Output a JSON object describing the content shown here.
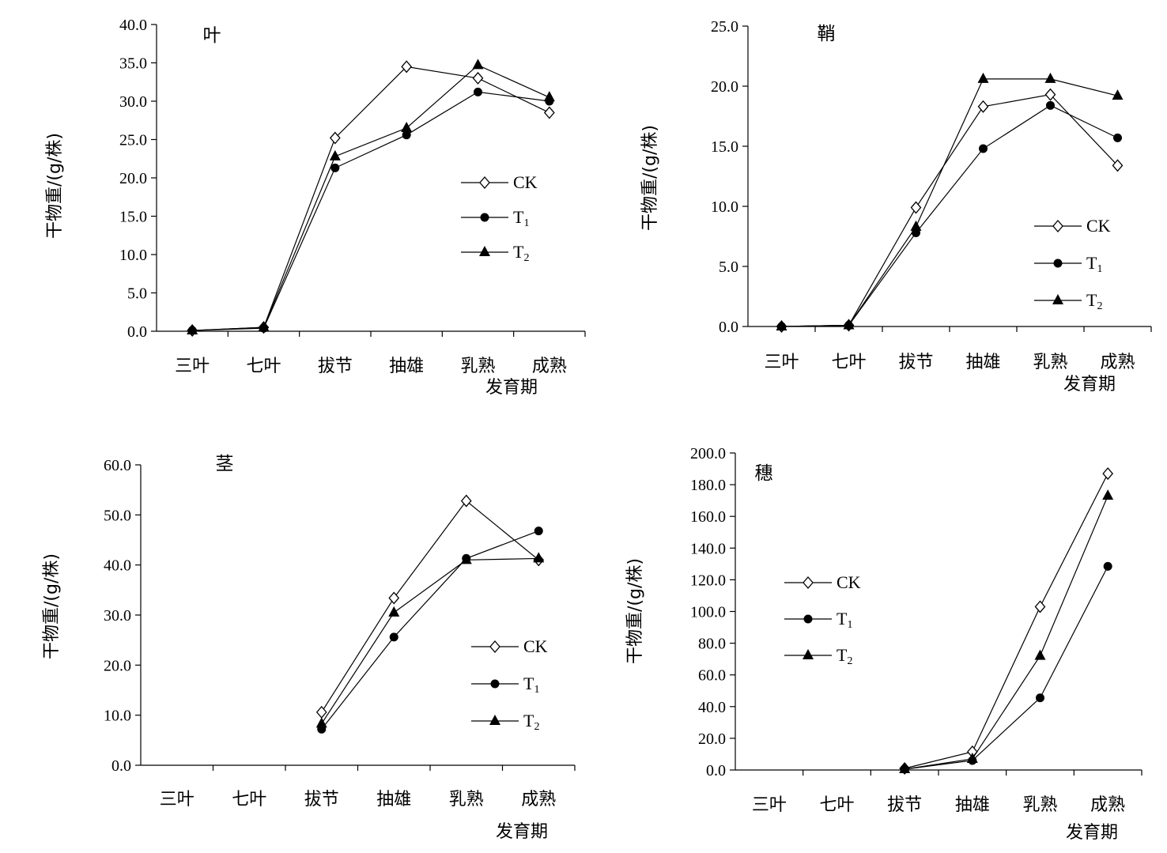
{
  "chart_data": [
    {
      "type": "line",
      "title": "叶",
      "xlabel": "发育期",
      "ylabel": "干物重/(g/株)",
      "categories": [
        "三叶",
        "七叶",
        "拔节",
        "抽雄",
        "乳熟",
        "成熟"
      ],
      "ylim": [
        0,
        40
      ],
      "yticks": [
        "0.0",
        "5.0",
        "10.0",
        "15.0",
        "20.0",
        "25.0",
        "30.0",
        "35.0",
        "40.0"
      ],
      "legend_position": "right",
      "series": [
        {
          "name": "CK",
          "marker": "open-diamond",
          "values": [
            0.1,
            0.5,
            25.2,
            34.5,
            33.0,
            28.5
          ]
        },
        {
          "name": "T1",
          "marker": "filled-circle",
          "values": [
            0.1,
            0.4,
            21.3,
            25.6,
            31.2,
            30.0
          ]
        },
        {
          "name": "T2",
          "marker": "filled-triangle",
          "values": [
            0.1,
            0.5,
            22.8,
            26.5,
            34.7,
            30.5
          ]
        }
      ]
    },
    {
      "type": "line",
      "title": "鞘",
      "xlabel": "发育期",
      "ylabel": "干物重/(g/株)",
      "categories": [
        "三叶",
        "七叶",
        "拔节",
        "抽雄",
        "乳熟",
        "成熟"
      ],
      "ylim": [
        0,
        25
      ],
      "yticks": [
        "0.0",
        "5.0",
        "10.0",
        "15.0",
        "20.0",
        "25.0"
      ],
      "legend_position": "bottom-right",
      "series": [
        {
          "name": "CK",
          "marker": "open-diamond",
          "values": [
            0.0,
            0.1,
            9.9,
            18.3,
            19.3,
            13.4
          ]
        },
        {
          "name": "T1",
          "marker": "filled-circle",
          "values": [
            0.0,
            0.1,
            7.8,
            14.8,
            18.4,
            15.7
          ]
        },
        {
          "name": "T2",
          "marker": "filled-triangle",
          "values": [
            0.0,
            0.1,
            8.3,
            20.6,
            20.6,
            19.2
          ]
        }
      ]
    },
    {
      "type": "line",
      "title": "茎",
      "xlabel": "发育期",
      "ylabel": "干物重/(g/株)",
      "categories": [
        "三叶",
        "七叶",
        "拔节",
        "抽雄",
        "乳熟",
        "成熟"
      ],
      "ylim": [
        0,
        60
      ],
      "yticks": [
        "0.0",
        "10.0",
        "20.0",
        "30.0",
        "40.0",
        "50.0",
        "60.0"
      ],
      "legend_position": "bottom-right",
      "series": [
        {
          "name": "CK",
          "marker": "open-diamond",
          "values": [
            null,
            null,
            10.6,
            33.4,
            52.8,
            41.0
          ]
        },
        {
          "name": "T1",
          "marker": "filled-circle",
          "values": [
            null,
            null,
            7.2,
            25.6,
            41.3,
            46.8
          ]
        },
        {
          "name": "T2",
          "marker": "filled-triangle",
          "values": [
            null,
            null,
            8.3,
            30.5,
            41.0,
            41.3
          ]
        }
      ]
    },
    {
      "type": "line",
      "title": "穗",
      "xlabel": "发育期",
      "ylabel": "干物重/(g/株)",
      "categories": [
        "三叶",
        "七叶",
        "拔节",
        "抽雄",
        "乳熟",
        "成熟"
      ],
      "ylim": [
        0,
        200
      ],
      "yticks": [
        "0.0",
        "20.0",
        "40.0",
        "60.0",
        "80.0",
        "100.0",
        "120.0",
        "140.0",
        "160.0",
        "180.0",
        "200.0"
      ],
      "legend_position": "left",
      "series": [
        {
          "name": "CK",
          "marker": "open-diamond",
          "values": [
            null,
            null,
            1.0,
            11.5,
            103.0,
            187.0
          ]
        },
        {
          "name": "T1",
          "marker": "filled-circle",
          "values": [
            null,
            null,
            0.5,
            6.0,
            45.5,
            128.5
          ]
        },
        {
          "name": "T2",
          "marker": "filled-triangle",
          "values": [
            null,
            null,
            0.5,
            7.0,
            72.0,
            173.0
          ]
        }
      ]
    }
  ]
}
